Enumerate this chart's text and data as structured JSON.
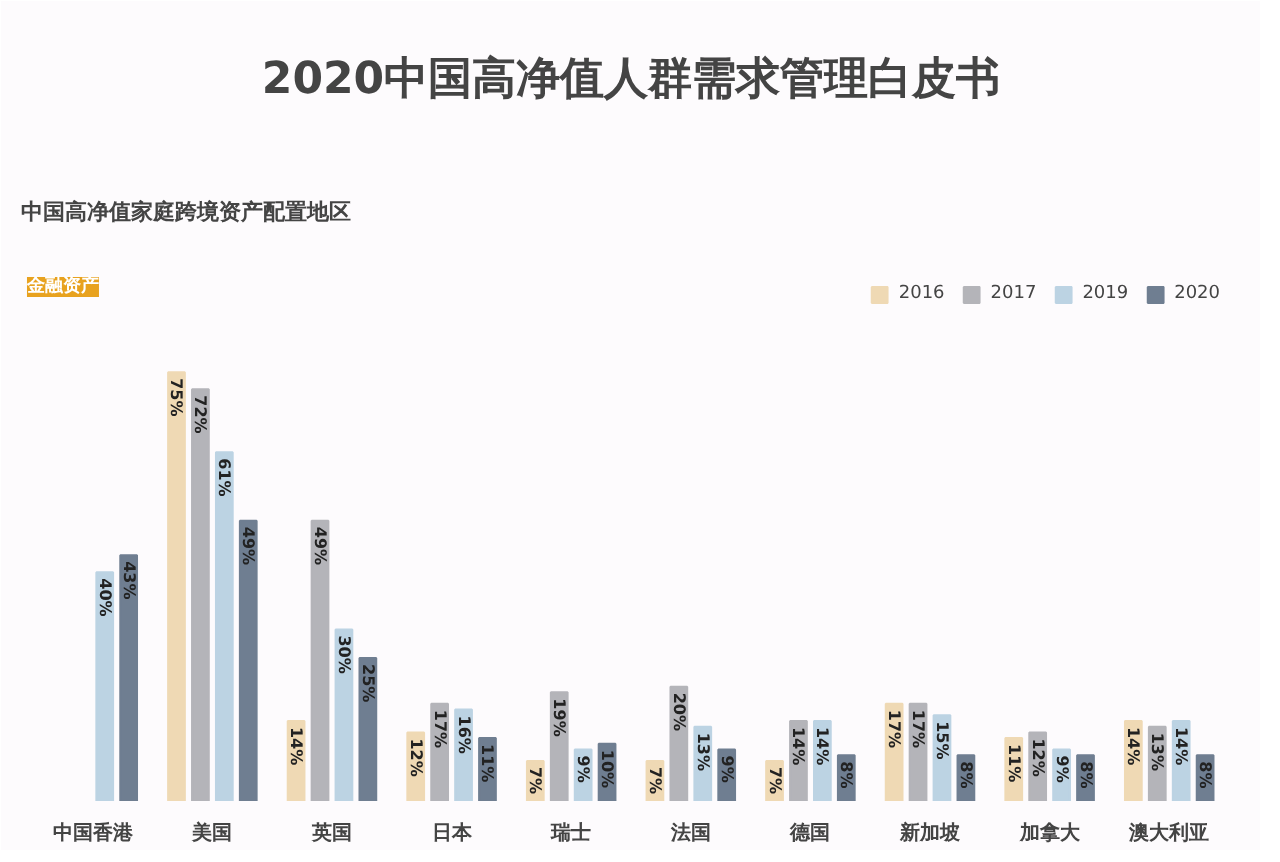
{
  "chart_data": {
    "type": "bar",
    "title": "2020中国高净值人群需求管理白皮书",
    "subtitle": "中国高净值家庭跨境资产配置地区",
    "annotations": [
      "金融资产"
    ],
    "categories": [
      "中国香港",
      "美国",
      "英国",
      "日本",
      "瑞士",
      "法国",
      "德国",
      "新加坡",
      "加拿大",
      "澳大利亚"
    ],
    "series": [
      {
        "name": "2016",
        "color": "#efd9b4",
        "values": [
          null,
          75,
          14,
          12,
          7,
          7,
          7,
          17,
          11,
          14
        ],
        "value_labels": [
          null,
          "75%",
          "14%",
          "12%",
          "7%",
          "7%",
          "7%",
          "17%",
          "11%",
          "14%"
        ]
      },
      {
        "name": "2017",
        "color": "#b4b4b9",
        "values": [
          null,
          72,
          49,
          17,
          19,
          20,
          14,
          17,
          12,
          13
        ],
        "value_labels": [
          null,
          "72%",
          "49%",
          "17%",
          "19%",
          "20%",
          "14%",
          "17%",
          "12%",
          "13%"
        ]
      },
      {
        "name": "2019",
        "color": "#bcd3e3",
        "values": [
          40,
          61,
          30,
          16,
          9,
          13,
          14,
          15,
          9,
          14
        ],
        "value_labels": [
          "40%",
          "61%",
          "30%",
          "16%",
          "9%",
          "13%",
          "14%",
          "15%",
          "9%",
          "14%"
        ]
      },
      {
        "name": "2020",
        "color": "#6f7e91",
        "values": [
          43,
          49,
          25,
          11,
          10,
          9,
          8,
          8,
          8,
          8
        ],
        "value_labels": [
          "43%",
          "49%",
          "25%",
          "11%",
          "10%",
          "9%",
          "8%",
          "8%",
          "8%",
          "8%"
        ]
      }
    ],
    "legend": "top right",
    "grid": false
  }
}
